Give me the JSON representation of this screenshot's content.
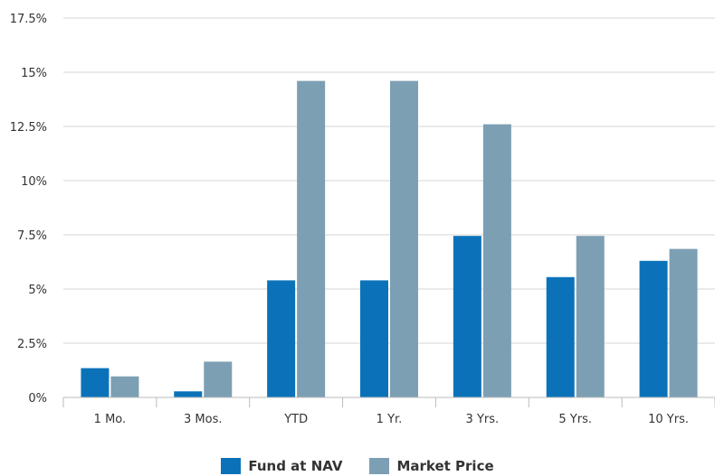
{
  "chart_data": {
    "type": "bar",
    "categories": [
      "1 Mo.",
      "3 Mos.",
      "YTD",
      "1 Yr.",
      "3 Yrs.",
      "5 Yrs.",
      "10 Yrs."
    ],
    "series": [
      {
        "name": "Fund at NAV",
        "color": "#0b72b9",
        "values": [
          1.35,
          0.28,
          5.4,
          5.4,
          7.45,
          5.55,
          6.3
        ]
      },
      {
        "name": "Market Price",
        "color": "#7c9fb3",
        "values": [
          0.97,
          1.65,
          14.6,
          14.6,
          12.6,
          7.45,
          6.85
        ]
      }
    ],
    "ylim": [
      0,
      17.5
    ],
    "yticks": [
      0,
      2.5,
      5,
      7.5,
      10,
      12.5,
      15,
      17.5
    ],
    "ytick_labels": [
      "0%",
      "2.5%",
      "5%",
      "7.5%",
      "10%",
      "12.5%",
      "15%",
      "17.5%"
    ],
    "grid": true,
    "legend_position": "bottom-center"
  }
}
